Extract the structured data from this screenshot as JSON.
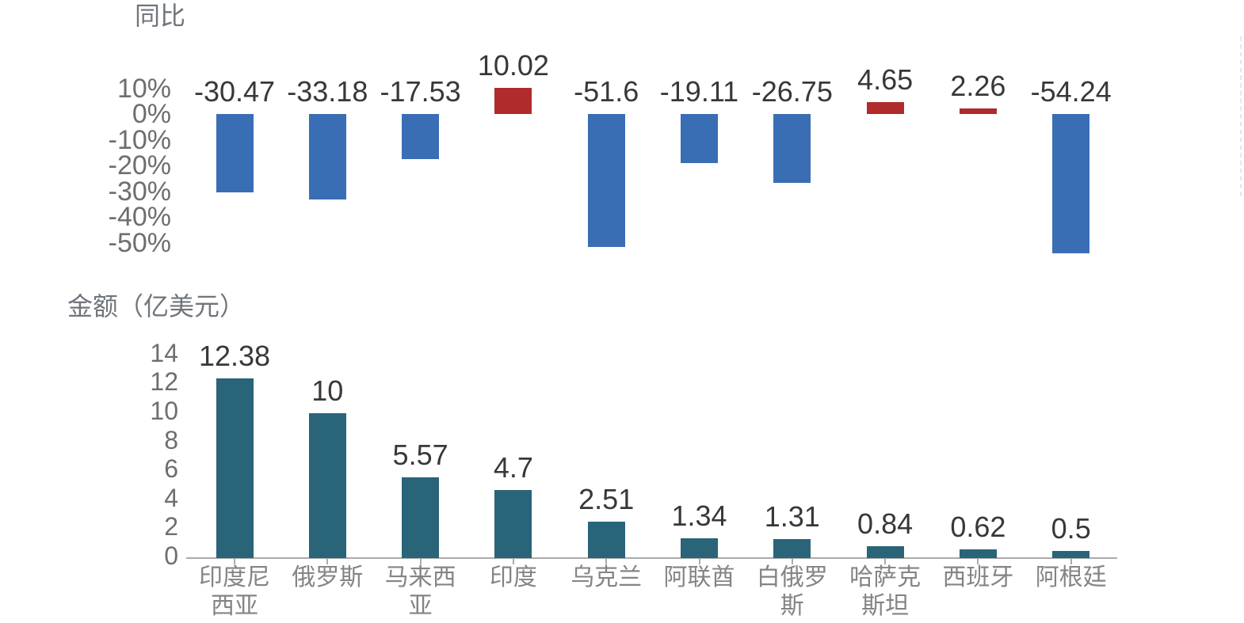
{
  "figure": {
    "background": "#ffffff",
    "description": "Two stacked bar charts sharing ten country categories"
  },
  "palette": {
    "bar_negative": "#3a6eb4",
    "bar_positive": "#b02b2b",
    "bar_amount": "#2a6478",
    "data_label_text": "#383838",
    "axis_tick_text": "#6e6e6e",
    "category_text": "#848484",
    "title_text": "#70757c",
    "axis_line": "#ababab"
  },
  "chart_data": [
    {
      "type": "bar",
      "title": "同比",
      "ylabel": "同比",
      "xlabel": "",
      "grid": false,
      "legend": null,
      "ylim": [
        -55,
        12
      ],
      "categories": [
        "印度尼西亚",
        "俄罗斯",
        "马来西亚",
        "印度",
        "乌克兰",
        "阿联酋",
        "白俄罗斯",
        "哈萨克斯坦",
        "西班牙",
        "阿根廷"
      ],
      "values": [
        -30.47,
        -33.18,
        -17.53,
        10.02,
        -51.6,
        -19.11,
        -26.75,
        4.65,
        2.26,
        -54.24
      ],
      "data_labels": [
        "-30.47",
        "-33.18",
        "-17.53",
        "10.02",
        "-51.6",
        "-19.11",
        "-26.75",
        "4.65",
        "2.26",
        "-54.24"
      ],
      "ytick_labels": [
        "10%",
        "0%",
        "-10%",
        "-20%",
        "-30%",
        "-40%",
        "-50%"
      ],
      "ytick_values": [
        10,
        0,
        -10,
        -20,
        -30,
        -40,
        -50
      ],
      "value_unit": "%",
      "positive_color": "#b02b2b",
      "negative_color": "#3a6eb4",
      "show_category_labels": false,
      "show_x_axis_line": false
    },
    {
      "type": "bar",
      "title": "金额（亿美元）",
      "ylabel": "金额（亿美元）",
      "xlabel": "",
      "grid": false,
      "legend": null,
      "ylim": [
        0,
        14
      ],
      "categories": [
        "印度尼西亚",
        "俄罗斯",
        "马来西亚",
        "印度",
        "乌克兰",
        "阿联酋",
        "白俄罗斯",
        "哈萨克斯坦",
        "西班牙",
        "阿根廷"
      ],
      "values": [
        12.38,
        10,
        5.57,
        4.7,
        2.51,
        1.34,
        1.31,
        0.84,
        0.62,
        0.5
      ],
      "data_labels": [
        "12.38",
        "10",
        "5.57",
        "4.7",
        "2.51",
        "1.34",
        "1.31",
        "0.84",
        "0.62",
        "0.5"
      ],
      "ytick_labels": [
        "14",
        "12",
        "10",
        "8",
        "6",
        "4",
        "2",
        "0"
      ],
      "ytick_values": [
        14,
        12,
        10,
        8,
        6,
        4,
        2,
        0
      ],
      "value_unit": "亿美元",
      "bar_color": "#2a6478",
      "show_category_labels": true,
      "show_x_axis_line": true
    }
  ]
}
